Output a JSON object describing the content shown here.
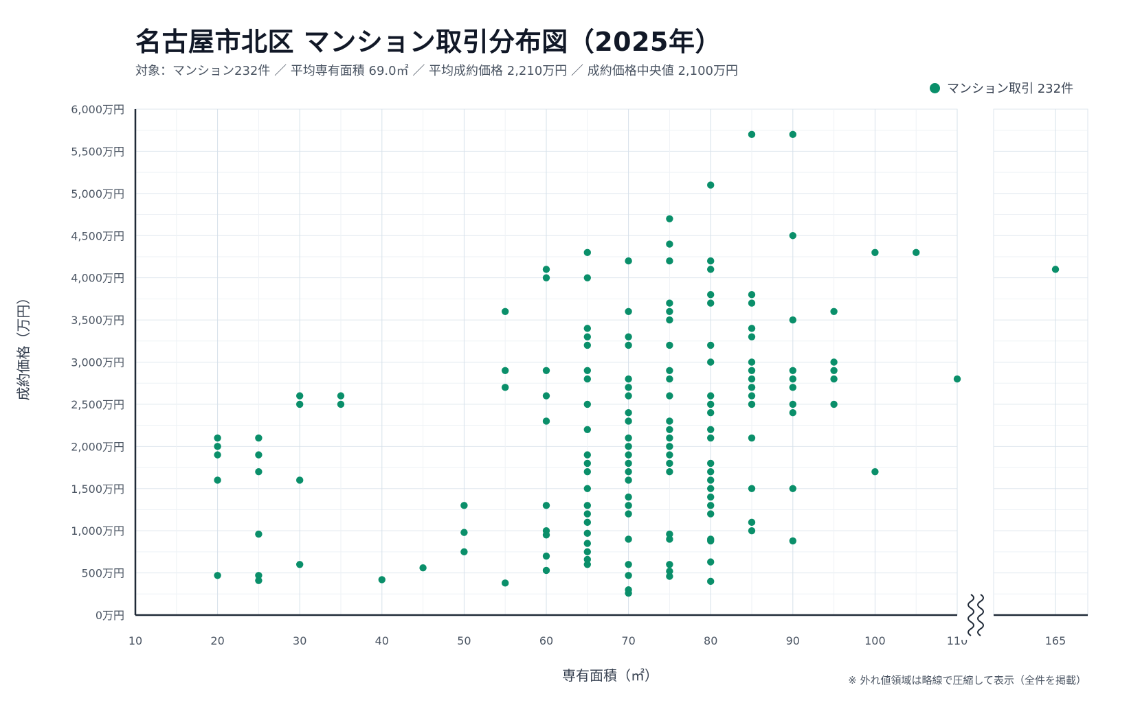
{
  "title": "名古屋市北区 マンション取引分布図（2025年）",
  "subtitle": "対象：マンション232件 ／ 平均専有面積 69.0㎡ ／ 平均成約価格 2,210万円 ／ 成約価格中央値 2,100万円",
  "legend_label": "マンション取引 232件",
  "footnote": "※ 外れ値領域は略線で圧縮して表示（全件を掲載）",
  "colors": {
    "point": "#0a8f6a",
    "grid": "#dde6ee",
    "axis": "#1f2937"
  },
  "chart_data": {
    "type": "scatter",
    "title": "名古屋市北区 マンション取引分布図（2025年）",
    "xlabel": "専有面積（㎡）",
    "ylabel": "成約価格（万円）",
    "xlim": [
      10,
      110
    ],
    "x_break": {
      "after": 110,
      "resume_ticks": [
        165
      ]
    },
    "ylim": [
      0,
      6000
    ],
    "x_ticks": [
      10,
      20,
      30,
      40,
      50,
      60,
      70,
      80,
      90,
      100,
      110,
      165
    ],
    "x_tick_labels": [
      "10",
      "20",
      "30",
      "40",
      "50",
      "60",
      "70",
      "80",
      "90",
      "100",
      "110",
      "165"
    ],
    "y_ticks": [
      0,
      500,
      1000,
      1500,
      2000,
      2500,
      3000,
      3500,
      4000,
      4500,
      5000,
      5500,
      6000
    ],
    "y_tick_labels": [
      "0万円",
      "500万円",
      "1,000万円",
      "1,500万円",
      "2,000万円",
      "2,500万円",
      "3,000万円",
      "3,500万円",
      "4,000万円",
      "4,500万円",
      "5,000万円",
      "5,500万円",
      "6,000万円"
    ],
    "grid": true,
    "legend_position": "top-right",
    "series": [
      {
        "name": "マンション取引 232件",
        "points": [
          [
            20,
            2100
          ],
          [
            20,
            2000
          ],
          [
            20,
            1900
          ],
          [
            20,
            1600
          ],
          [
            20,
            470
          ],
          [
            25,
            2100
          ],
          [
            25,
            1900
          ],
          [
            25,
            1700
          ],
          [
            25,
            960
          ],
          [
            25,
            470
          ],
          [
            25,
            410
          ],
          [
            30,
            2600
          ],
          [
            30,
            2500
          ],
          [
            30,
            1600
          ],
          [
            30,
            600
          ],
          [
            35,
            2600
          ],
          [
            35,
            2500
          ],
          [
            40,
            420
          ],
          [
            45,
            560
          ],
          [
            50,
            1300
          ],
          [
            50,
            980
          ],
          [
            50,
            750
          ],
          [
            55,
            3600
          ],
          [
            55,
            2900
          ],
          [
            55,
            2700
          ],
          [
            55,
            380
          ],
          [
            60,
            4100
          ],
          [
            60,
            4000
          ],
          [
            60,
            2900
          ],
          [
            60,
            2600
          ],
          [
            60,
            2300
          ],
          [
            60,
            1300
          ],
          [
            60,
            1000
          ],
          [
            60,
            950
          ],
          [
            60,
            700
          ],
          [
            60,
            530
          ],
          [
            65,
            4300
          ],
          [
            65,
            4000
          ],
          [
            65,
            3400
          ],
          [
            65,
            3300
          ],
          [
            65,
            3200
          ],
          [
            65,
            2900
          ],
          [
            65,
            2800
          ],
          [
            65,
            2500
          ],
          [
            65,
            2200
          ],
          [
            65,
            1900
          ],
          [
            65,
            1800
          ],
          [
            65,
            1700
          ],
          [
            65,
            1500
          ],
          [
            65,
            1300
          ],
          [
            65,
            1200
          ],
          [
            65,
            1100
          ],
          [
            65,
            970
          ],
          [
            65,
            850
          ],
          [
            65,
            750
          ],
          [
            65,
            660
          ],
          [
            65,
            600
          ],
          [
            70,
            4200
          ],
          [
            70,
            3600
          ],
          [
            70,
            3300
          ],
          [
            70,
            3200
          ],
          [
            70,
            2800
          ],
          [
            70,
            2700
          ],
          [
            70,
            2600
          ],
          [
            70,
            2400
          ],
          [
            70,
            2300
          ],
          [
            70,
            2100
          ],
          [
            70,
            2000
          ],
          [
            70,
            1900
          ],
          [
            70,
            1800
          ],
          [
            70,
            1700
          ],
          [
            70,
            1600
          ],
          [
            70,
            1400
          ],
          [
            70,
            1300
          ],
          [
            70,
            1200
          ],
          [
            70,
            900
          ],
          [
            70,
            600
          ],
          [
            70,
            470
          ],
          [
            70,
            300
          ],
          [
            70,
            260
          ],
          [
            75,
            4700
          ],
          [
            75,
            4400
          ],
          [
            75,
            4200
          ],
          [
            75,
            3700
          ],
          [
            75,
            3600
          ],
          [
            75,
            3500
          ],
          [
            75,
            3200
          ],
          [
            75,
            2900
          ],
          [
            75,
            2800
          ],
          [
            75,
            2600
          ],
          [
            75,
            2300
          ],
          [
            75,
            2200
          ],
          [
            75,
            2100
          ],
          [
            75,
            2000
          ],
          [
            75,
            1900
          ],
          [
            75,
            1800
          ],
          [
            75,
            1700
          ],
          [
            75,
            960
          ],
          [
            75,
            900
          ],
          [
            75,
            600
          ],
          [
            75,
            520
          ],
          [
            75,
            460
          ],
          [
            80,
            5100
          ],
          [
            80,
            4200
          ],
          [
            80,
            4100
          ],
          [
            80,
            3800
          ],
          [
            80,
            3700
          ],
          [
            80,
            3200
          ],
          [
            80,
            3000
          ],
          [
            80,
            2600
          ],
          [
            80,
            2500
          ],
          [
            80,
            2400
          ],
          [
            80,
            2200
          ],
          [
            80,
            2100
          ],
          [
            80,
            1800
          ],
          [
            80,
            1700
          ],
          [
            80,
            1600
          ],
          [
            80,
            1500
          ],
          [
            80,
            1400
          ],
          [
            80,
            1300
          ],
          [
            80,
            1200
          ],
          [
            80,
            900
          ],
          [
            80,
            880
          ],
          [
            80,
            630
          ],
          [
            80,
            400
          ],
          [
            85,
            5700
          ],
          [
            85,
            3800
          ],
          [
            85,
            3700
          ],
          [
            85,
            3400
          ],
          [
            85,
            3300
          ],
          [
            85,
            3000
          ],
          [
            85,
            2900
          ],
          [
            85,
            2800
          ],
          [
            85,
            2700
          ],
          [
            85,
            2600
          ],
          [
            85,
            2500
          ],
          [
            85,
            2100
          ],
          [
            85,
            1500
          ],
          [
            85,
            1100
          ],
          [
            85,
            1000
          ],
          [
            90,
            5700
          ],
          [
            90,
            4500
          ],
          [
            90,
            3500
          ],
          [
            90,
            2900
          ],
          [
            90,
            2800
          ],
          [
            90,
            2700
          ],
          [
            90,
            2500
          ],
          [
            90,
            2400
          ],
          [
            90,
            1500
          ],
          [
            90,
            880
          ],
          [
            95,
            3600
          ],
          [
            95,
            3000
          ],
          [
            95,
            2900
          ],
          [
            95,
            2800
          ],
          [
            95,
            2500
          ],
          [
            100,
            4300
          ],
          [
            100,
            1700
          ],
          [
            105,
            4300
          ],
          [
            110,
            2800
          ],
          [
            165,
            4100
          ]
        ]
      }
    ]
  }
}
